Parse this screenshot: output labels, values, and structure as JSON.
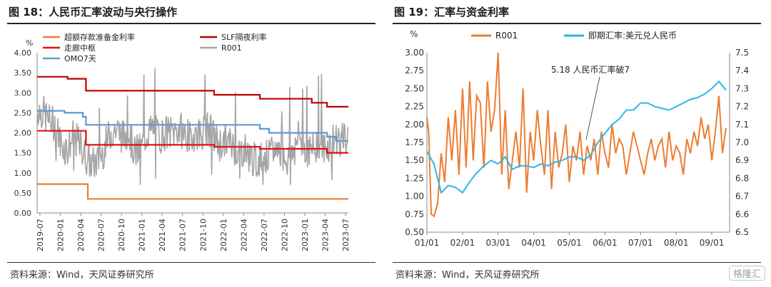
{
  "left_panel": {
    "title": "图 18：人民币汇率波动与央行操作",
    "source": "资料来源：Wind，天风证券研究所",
    "unit": "%"
  },
  "right_panel": {
    "title": "图 19：汇率与资金利率",
    "source": "资料来源：Wind，天风证券研究所",
    "unit": "%",
    "annotation": "5.18 人民币汇率破7",
    "watermark": "格隆汇"
  },
  "colors": {
    "orange": "#ED7D31",
    "darkred": "#C00000",
    "red": "#E01010",
    "gray": "#A5A5A5",
    "blue": "#5B9BD5",
    "cyan": "#2EB6E8"
  },
  "chart_data": [
    {
      "type": "line",
      "ylim": [
        0,
        4.0
      ],
      "yticks": [
        "0.00",
        "0.50",
        "1.00",
        "1.50",
        "2.00",
        "2.50",
        "3.00",
        "3.50",
        "4.00"
      ],
      "xticks": [
        "2019-07",
        "2020-01",
        "2020-04",
        "2020-07",
        "2020-10",
        "2021-01",
        "2021-04",
        "2021-07",
        "2021-10",
        "2022-01",
        "2022-04",
        "2022-07",
        "2022-10",
        "2023-01",
        "2023-04",
        "2023-07"
      ],
      "xlim": [
        0,
        51
      ],
      "series": [
        {
          "name": "超额存款准备金利率",
          "color": "#ED7D31",
          "kind": "step",
          "points": [
            [
              0,
              0.72
            ],
            [
              8.3,
              0.72
            ],
            [
              8.3,
              0.35
            ],
            [
              51,
              0.35
            ]
          ]
        },
        {
          "name": "SLF隔夜利率",
          "color": "#C00000",
          "kind": "step",
          "points": [
            [
              0,
              3.4
            ],
            [
              5,
              3.4
            ],
            [
              5,
              3.35
            ],
            [
              8,
              3.35
            ],
            [
              8,
              3.05
            ],
            [
              29,
              3.05
            ],
            [
              29,
              2.95
            ],
            [
              36.5,
              2.95
            ],
            [
              36.5,
              2.85
            ],
            [
              45,
              2.85
            ],
            [
              45,
              2.75
            ],
            [
              47.5,
              2.75
            ],
            [
              47.5,
              2.65
            ],
            [
              51,
              2.65
            ]
          ]
        },
        {
          "name": "走廊中枢",
          "color": "#E01010",
          "kind": "step",
          "points": [
            [
              0,
              2.05
            ],
            [
              8,
              2.05
            ],
            [
              8,
              1.7
            ],
            [
              29,
              1.7
            ],
            [
              29,
              1.65
            ],
            [
              36.5,
              1.65
            ],
            [
              36.5,
              1.6
            ],
            [
              47.5,
              1.6
            ],
            [
              47.5,
              1.5
            ],
            [
              51,
              1.5
            ]
          ]
        },
        {
          "name": "OMO7天",
          "color": "#5B9BD5",
          "kind": "step",
          "points": [
            [
              0,
              2.55
            ],
            [
              4.5,
              2.55
            ],
            [
              4.5,
              2.5
            ],
            [
              7.5,
              2.5
            ],
            [
              7.5,
              2.4
            ],
            [
              8,
              2.4
            ],
            [
              8,
              2.2
            ],
            [
              36.5,
              2.2
            ],
            [
              36.5,
              2.1
            ],
            [
              38,
              2.1
            ],
            [
              38,
              2.0
            ],
            [
              47.5,
              2.0
            ],
            [
              47.5,
              1.9
            ],
            [
              49,
              1.9
            ],
            [
              49,
              1.8
            ],
            [
              51,
              1.8
            ]
          ]
        },
        {
          "name": "R001",
          "color": "#A5A5A5",
          "kind": "noisy",
          "points": [
            [
              0,
              2.6
            ],
            [
              1,
              2.5
            ],
            [
              2,
              2.3
            ],
            [
              3,
              2.2
            ],
            [
              4,
              1.7
            ],
            [
              5,
              1.6
            ],
            [
              6,
              1.9
            ],
            [
              7,
              1.7
            ],
            [
              8,
              1.4
            ],
            [
              9,
              1.2
            ],
            [
              10,
              1.3
            ],
            [
              11,
              1.6
            ],
            [
              12,
              2.0
            ],
            [
              13,
              2.1
            ],
            [
              14,
              1.9
            ],
            [
              15,
              2.0
            ],
            [
              16,
              1.5
            ],
            [
              17,
              1.6
            ],
            [
              18,
              2.0
            ],
            [
              19,
              2.1
            ],
            [
              20,
              1.9
            ],
            [
              21,
              2.0
            ],
            [
              22,
              2.0
            ],
            [
              23,
              2.1
            ],
            [
              24,
              2.0
            ],
            [
              25,
              1.9
            ],
            [
              26,
              2.0
            ],
            [
              27,
              2.0
            ],
            [
              28,
              2.1
            ],
            [
              29,
              1.9
            ],
            [
              30,
              1.7
            ],
            [
              31,
              1.8
            ],
            [
              32,
              1.7
            ],
            [
              33,
              1.5
            ],
            [
              34,
              1.6
            ],
            [
              35,
              1.4
            ],
            [
              36,
              1.3
            ],
            [
              37,
              1.4
            ],
            [
              38,
              1.4
            ],
            [
              39,
              1.6
            ],
            [
              40,
              1.6
            ],
            [
              41,
              1.3
            ],
            [
              42,
              1.7
            ],
            [
              43,
              1.9
            ],
            [
              44,
              1.6
            ],
            [
              45,
              1.5
            ],
            [
              46,
              1.8
            ],
            [
              47,
              1.6
            ],
            [
              48,
              1.7
            ],
            [
              49,
              1.9
            ],
            [
              50,
              1.8
            ],
            [
              51,
              1.9
            ]
          ]
        }
      ]
    },
    {
      "type": "line",
      "ylim": [
        0.5,
        3.0
      ],
      "y2lim": [
        6.5,
        7.5
      ],
      "yticks": [
        "0.50",
        "0.75",
        "1.00",
        "1.25",
        "1.50",
        "1.75",
        "2.00",
        "2.25",
        "2.50",
        "2.75",
        "3.00"
      ],
      "y2ticks": [
        "6.5",
        "6.6",
        "6.7",
        "6.8",
        "6.9",
        "7.0",
        "7.1",
        "7.2",
        "7.3",
        "7.4",
        "7.5"
      ],
      "xticks": [
        "01/01",
        "02/01",
        "03/01",
        "04/01",
        "05/01",
        "06/01",
        "07/01",
        "08/01",
        "09/01"
      ],
      "xlim": [
        0,
        8.5
      ],
      "series": [
        {
          "name": "R001",
          "color": "#ED7D31",
          "axis": "left",
          "x": [
            0,
            0.05,
            0.12,
            0.2,
            0.3,
            0.4,
            0.5,
            0.6,
            0.7,
            0.8,
            0.9,
            1.0,
            1.1,
            1.2,
            1.3,
            1.4,
            1.5,
            1.6,
            1.7,
            1.8,
            1.9,
            2.0,
            2.1,
            2.2,
            2.3,
            2.4,
            2.5,
            2.6,
            2.7,
            2.8,
            2.9,
            3.0,
            3.1,
            3.2,
            3.3,
            3.4,
            3.5,
            3.6,
            3.7,
            3.8,
            3.9,
            4.0,
            4.1,
            4.2,
            4.3,
            4.4,
            4.5,
            4.6,
            4.7,
            4.8,
            4.9,
            5.0,
            5.1,
            5.2,
            5.3,
            5.4,
            5.5,
            5.6,
            5.7,
            5.8,
            5.9,
            6.0,
            6.1,
            6.2,
            6.3,
            6.4,
            6.5,
            6.6,
            6.7,
            6.8,
            6.9,
            7.0,
            7.1,
            7.2,
            7.3,
            7.4,
            7.5,
            7.6,
            7.7,
            7.8,
            7.9,
            8.0,
            8.1,
            8.2,
            8.3,
            8.4
          ],
          "values": [
            2.1,
            1.9,
            0.75,
            0.72,
            0.9,
            1.6,
            1.2,
            2.1,
            1.5,
            2.2,
            1.3,
            2.5,
            1.4,
            2.6,
            1.5,
            2.4,
            2.3,
            1.4,
            2.6,
            1.9,
            2.2,
            3.0,
            1.3,
            2.2,
            1.1,
            1.5,
            1.9,
            1.4,
            2.5,
            1.05,
            1.9,
            1.5,
            2.2,
            1.7,
            1.3,
            2.2,
            1.1,
            1.9,
            1.4,
            1.6,
            2.0,
            1.2,
            1.7,
            1.5,
            1.9,
            1.3,
            1.7,
            1.5,
            1.8,
            1.3,
            1.9,
            1.6,
            1.4,
            2.0,
            1.6,
            1.8,
            1.7,
            1.3,
            1.6,
            1.9,
            1.7,
            1.5,
            1.3,
            1.6,
            1.8,
            1.5,
            1.7,
            1.8,
            1.4,
            1.9,
            1.5,
            1.7,
            1.6,
            1.3,
            1.8,
            1.6,
            1.9,
            1.7,
            2.1,
            1.8,
            2.0,
            1.5,
            1.9,
            2.4,
            1.6,
            1.95
          ]
        },
        {
          "name": "即期汇率:美元兑人民币",
          "color": "#2EB6E8",
          "axis": "right",
          "x": [
            0,
            0.2,
            0.4,
            0.6,
            0.8,
            1.0,
            1.2,
            1.4,
            1.6,
            1.8,
            2.0,
            2.2,
            2.4,
            2.6,
            2.8,
            3.0,
            3.2,
            3.4,
            3.6,
            3.8,
            4.0,
            4.2,
            4.4,
            4.6,
            4.8,
            5.0,
            5.2,
            5.4,
            5.6,
            5.8,
            6.0,
            6.2,
            6.4,
            6.6,
            6.8,
            7.0,
            7.2,
            7.4,
            7.6,
            7.8,
            8.0,
            8.2,
            8.4
          ],
          "values": [
            6.95,
            6.88,
            6.72,
            6.76,
            6.75,
            6.72,
            6.78,
            6.83,
            6.87,
            6.9,
            6.88,
            6.92,
            6.85,
            6.87,
            6.87,
            6.86,
            6.88,
            6.87,
            6.89,
            6.9,
            6.92,
            6.92,
            6.9,
            6.93,
            7.0,
            7.05,
            7.1,
            7.13,
            7.18,
            7.18,
            7.22,
            7.22,
            7.2,
            7.19,
            7.18,
            7.2,
            7.22,
            7.24,
            7.25,
            7.27,
            7.3,
            7.34,
            7.29
          ]
        }
      ]
    }
  ]
}
